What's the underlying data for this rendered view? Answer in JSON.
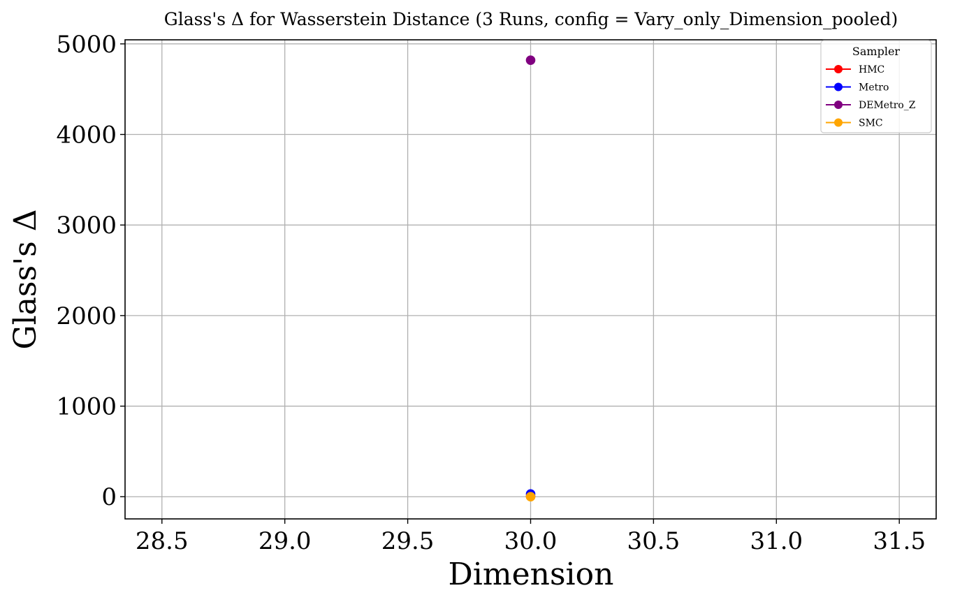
{
  "chart_data": {
    "type": "scatter",
    "title": "Glass's Δ for Wasserstein Distance (3 Runs, config = Vary_only_Dimension_pooled)",
    "xlabel": "Dimension",
    "ylabel": "Glass's Δ",
    "xlim": [
      28.35,
      31.65
    ],
    "ylim": [
      -245,
      5045
    ],
    "xticks": [
      28.5,
      29.0,
      29.5,
      30.0,
      30.5,
      31.0,
      31.5
    ],
    "xtick_labels": [
      "28.5",
      "29.0",
      "29.5",
      "30.0",
      "30.5",
      "31.0",
      "31.5"
    ],
    "yticks": [
      0,
      1000,
      2000,
      3000,
      4000,
      5000
    ],
    "ytick_labels": [
      "0",
      "1000",
      "2000",
      "3000",
      "4000",
      "5000"
    ],
    "grid": true,
    "legend": {
      "title": "Sampler",
      "position": "top-right"
    },
    "series": [
      {
        "name": "HMC",
        "color": "#ff0000",
        "x": [
          30.0
        ],
        "y": [
          5
        ]
      },
      {
        "name": "Metro",
        "color": "#0000ff",
        "x": [
          30.0
        ],
        "y": [
          30
        ]
      },
      {
        "name": "DEMetro_Z",
        "color": "#800080",
        "x": [
          30.0
        ],
        "y": [
          4820
        ]
      },
      {
        "name": "SMC",
        "color": "#ffa500",
        "x": [
          30.0
        ],
        "y": [
          0
        ]
      }
    ]
  }
}
